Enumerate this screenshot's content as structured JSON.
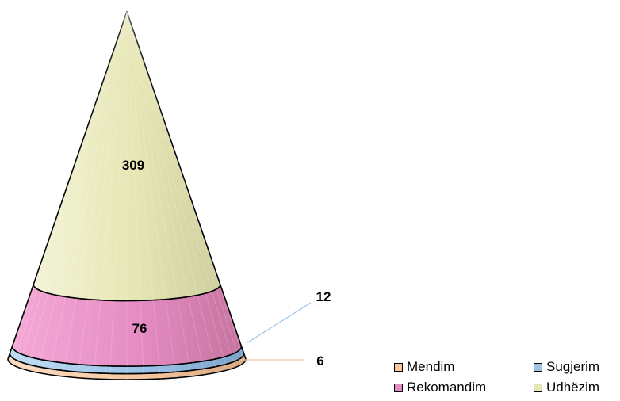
{
  "chart_data": {
    "type": "cone",
    "categories": [
      "Mendim",
      "Sugjerim",
      "Rekomandim",
      "Udhëzim"
    ],
    "values": [
      6,
      12,
      76,
      309
    ],
    "colors": {
      "Mendim": "#F6C7A0",
      "Sugjerim": "#9CC3E8",
      "Rekomandim": "#E58CC4",
      "Udhëzim": "#E6E6B4"
    },
    "stack_order_bottom_to_top": [
      "Mendim",
      "Sugjerim",
      "Rekomandim",
      "Udhëzim"
    ],
    "legend": {
      "placement": "bottom-right",
      "entries": [
        "Mendim",
        "Sugjerim",
        "Rekomandim",
        "Udhëzim"
      ]
    },
    "data_labels": [
      {
        "category": "Udhëzim",
        "text": "309"
      },
      {
        "category": "Rekomandim",
        "text": "76"
      },
      {
        "category": "Sugjerim",
        "text": "12"
      },
      {
        "category": "Mendim",
        "text": "6"
      }
    ]
  }
}
